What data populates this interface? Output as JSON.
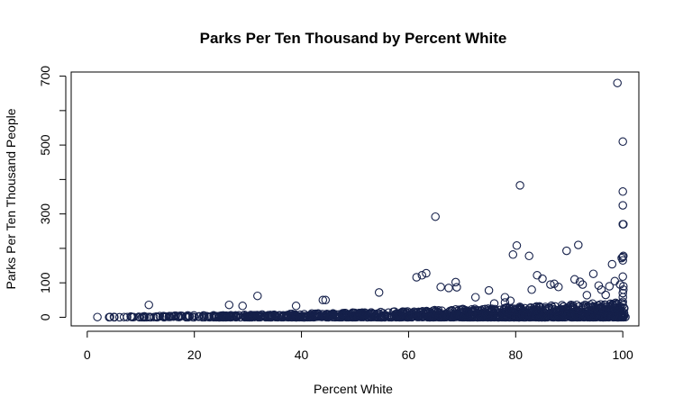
{
  "chart_data": {
    "type": "scatter",
    "title": "Parks Per Ten Thousand by Percent White",
    "xlabel": "Percent White",
    "ylabel": "Parks Per Ten Thousand People",
    "xlim": [
      -3,
      103
    ],
    "ylim": [
      -25,
      712
    ],
    "xticks": [
      0,
      20,
      40,
      60,
      80,
      100
    ],
    "yticks": [
      0,
      100,
      300,
      500,
      700
    ],
    "yminor_ticks": [
      200,
      400,
      600
    ],
    "grid": false,
    "legend": "none",
    "marker": "open-circle",
    "colors": {
      "points": "#15204a",
      "axis": "#000000"
    },
    "series": [
      {
        "points": [
          [
            11.5,
            36
          ],
          [
            26.5,
            36
          ],
          [
            31.8,
            62
          ],
          [
            29,
            33
          ],
          [
            39,
            33
          ],
          [
            44,
            50
          ],
          [
            44.5,
            50
          ],
          [
            54.5,
            72
          ],
          [
            61.5,
            116
          ],
          [
            62.5,
            122
          ],
          [
            63.3,
            128
          ],
          [
            65,
            292
          ],
          [
            68.8,
            102
          ],
          [
            69,
            87
          ],
          [
            67.5,
            85
          ],
          [
            66,
            88
          ],
          [
            72.5,
            58
          ],
          [
            75,
            78
          ],
          [
            76,
            40
          ],
          [
            78,
            58
          ],
          [
            78,
            43
          ],
          [
            79,
            48
          ],
          [
            79.5,
            182
          ],
          [
            80.2,
            208
          ],
          [
            80.8,
            383
          ],
          [
            82.5,
            178
          ],
          [
            83,
            80
          ],
          [
            84,
            122
          ],
          [
            85,
            112
          ],
          [
            86.5,
            95
          ],
          [
            87.2,
            97
          ],
          [
            88,
            88
          ],
          [
            89.5,
            193
          ],
          [
            91,
            110
          ],
          [
            91.7,
            210
          ],
          [
            92,
            103
          ],
          [
            92.5,
            95
          ],
          [
            93.3,
            64
          ],
          [
            94.5,
            126
          ],
          [
            95.5,
            92
          ],
          [
            96,
            80
          ],
          [
            96.8,
            65
          ],
          [
            97.5,
            90
          ],
          [
            98,
            154
          ],
          [
            98.5,
            105
          ],
          [
            99,
            680
          ],
          [
            99.5,
            95
          ],
          [
            99.8,
            172
          ],
          [
            100,
            510
          ],
          [
            100,
            365
          ],
          [
            100,
            325
          ],
          [
            100,
            270
          ],
          [
            100,
            175
          ],
          [
            100,
            165
          ],
          [
            100,
            118
          ],
          [
            100,
            70
          ],
          [
            100,
            58
          ],
          [
            100,
            45
          ],
          [
            100,
            35
          ],
          [
            100.1,
            270
          ],
          [
            100.1,
            178
          ],
          [
            100.1,
            90
          ],
          [
            100.1,
            80
          ]
        ]
      }
    ]
  }
}
